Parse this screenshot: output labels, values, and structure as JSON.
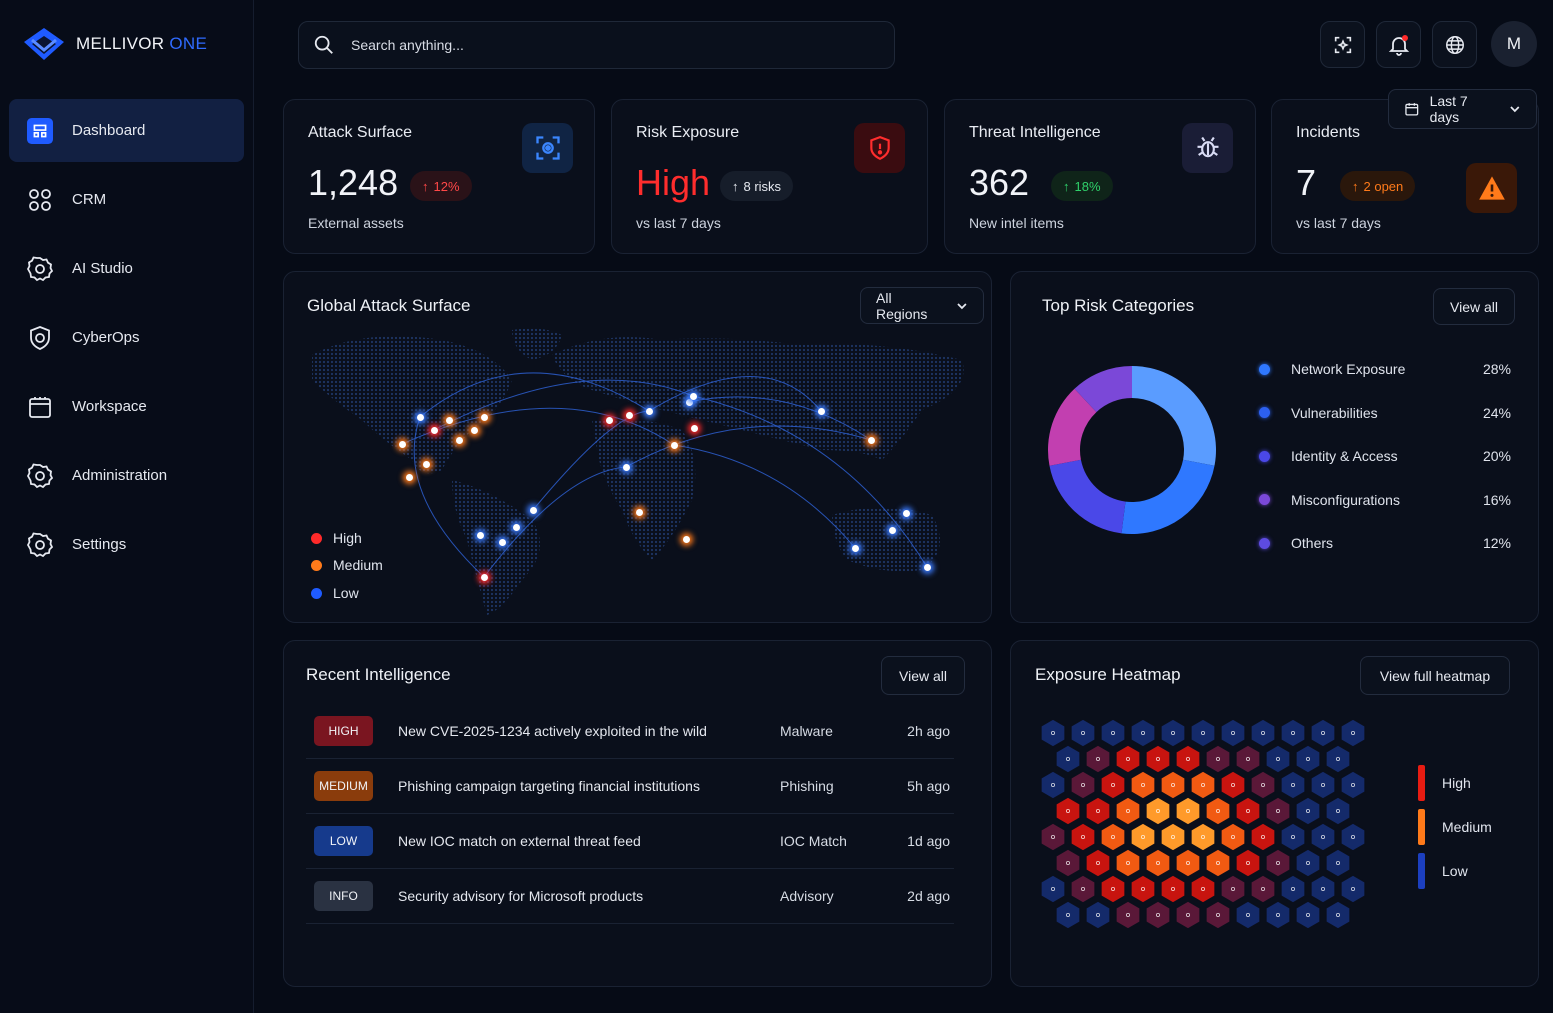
{
  "brand": {
    "name_main": "MELLIVOR",
    "name_accent": " ONE"
  },
  "nav": [
    {
      "label": "Dashboard",
      "icon": "dashboard-icon",
      "active": true
    },
    {
      "label": "CRM",
      "icon": "grid-circles-icon"
    },
    {
      "label": "AI Studio",
      "icon": "gear-icon"
    },
    {
      "label": "CyberOps",
      "icon": "shield-icon"
    },
    {
      "label": "Workspace",
      "icon": "folder-icon"
    },
    {
      "label": "Administration",
      "icon": "gear-icon"
    },
    {
      "label": "Settings",
      "icon": "gear-icon"
    }
  ],
  "search": {
    "placeholder": "Search anything..."
  },
  "user": {
    "initial": "M"
  },
  "date_range": "Last 7 days",
  "kpis": {
    "attack": {
      "title": "Attack Surface",
      "value": "1,248",
      "change": "12%",
      "sub": "External assets"
    },
    "risk": {
      "title": "Risk Exposure",
      "value": "High",
      "change": "8 risks",
      "sub": "vs last 7 days"
    },
    "threat": {
      "title": "Threat Intelligence",
      "value": "362",
      "change": "18%",
      "sub": "New intel items"
    },
    "incidents": {
      "title": "Incidents",
      "value": "7",
      "change": "2 open",
      "sub": "vs last 7 days"
    }
  },
  "map": {
    "title": "Global Attack Surface",
    "region": "All Regions",
    "legend": [
      {
        "label": "High",
        "color": "#ff2a2a"
      },
      {
        "label": "Medium",
        "color": "#ff7a1a"
      },
      {
        "label": "Low",
        "color": "#1f5bff"
      }
    ]
  },
  "risk": {
    "title": "Top Risk Categories",
    "view_all": "View all",
    "categories": [
      {
        "label": "Network Exposure",
        "pct": "28%",
        "value": 28,
        "color": "#2f78ff"
      },
      {
        "label": "Vulnerabilities",
        "pct": "24%",
        "value": 24,
        "color": "#2c60f0"
      },
      {
        "label": "Identity & Access",
        "pct": "20%",
        "value": 20,
        "color": "#4a48e8"
      },
      {
        "label": "Misconfigurations",
        "pct": "16%",
        "value": 16,
        "color": "#7b48d8"
      },
      {
        "label": "Others",
        "pct": "12%",
        "value": 12,
        "color": "#5d4be0"
      }
    ]
  },
  "intel": {
    "title": "Recent Intelligence",
    "view_all": "View all",
    "rows": [
      {
        "severity": "HIGH",
        "sev_color": "#7a1520",
        "title": "New CVE-2025-1234 actively exploited in the wild",
        "category": "Malware",
        "time": "2h ago"
      },
      {
        "severity": "MEDIUM",
        "sev_color": "#8a3c0c",
        "title": "Phishing campaign targeting financial institutions",
        "category": "Phishing",
        "time": "5h ago"
      },
      {
        "severity": "LOW",
        "sev_color": "#163a8c",
        "title": "New IOC match on external threat feed",
        "category": "IOC Match",
        "time": "1d ago"
      },
      {
        "severity": "INFO",
        "sev_color": "#2a3242",
        "title": "Security advisory for Microsoft products",
        "category": "Advisory",
        "time": "2d ago"
      }
    ]
  },
  "heatmap": {
    "title": "Exposure Heatmap",
    "button": "View full heatmap",
    "legend": [
      {
        "label": "High",
        "color": "#e81c12"
      },
      {
        "label": "Medium",
        "color": "#ff7a1a"
      },
      {
        "label": "Low",
        "color": "#1c3fbf"
      }
    ]
  }
}
